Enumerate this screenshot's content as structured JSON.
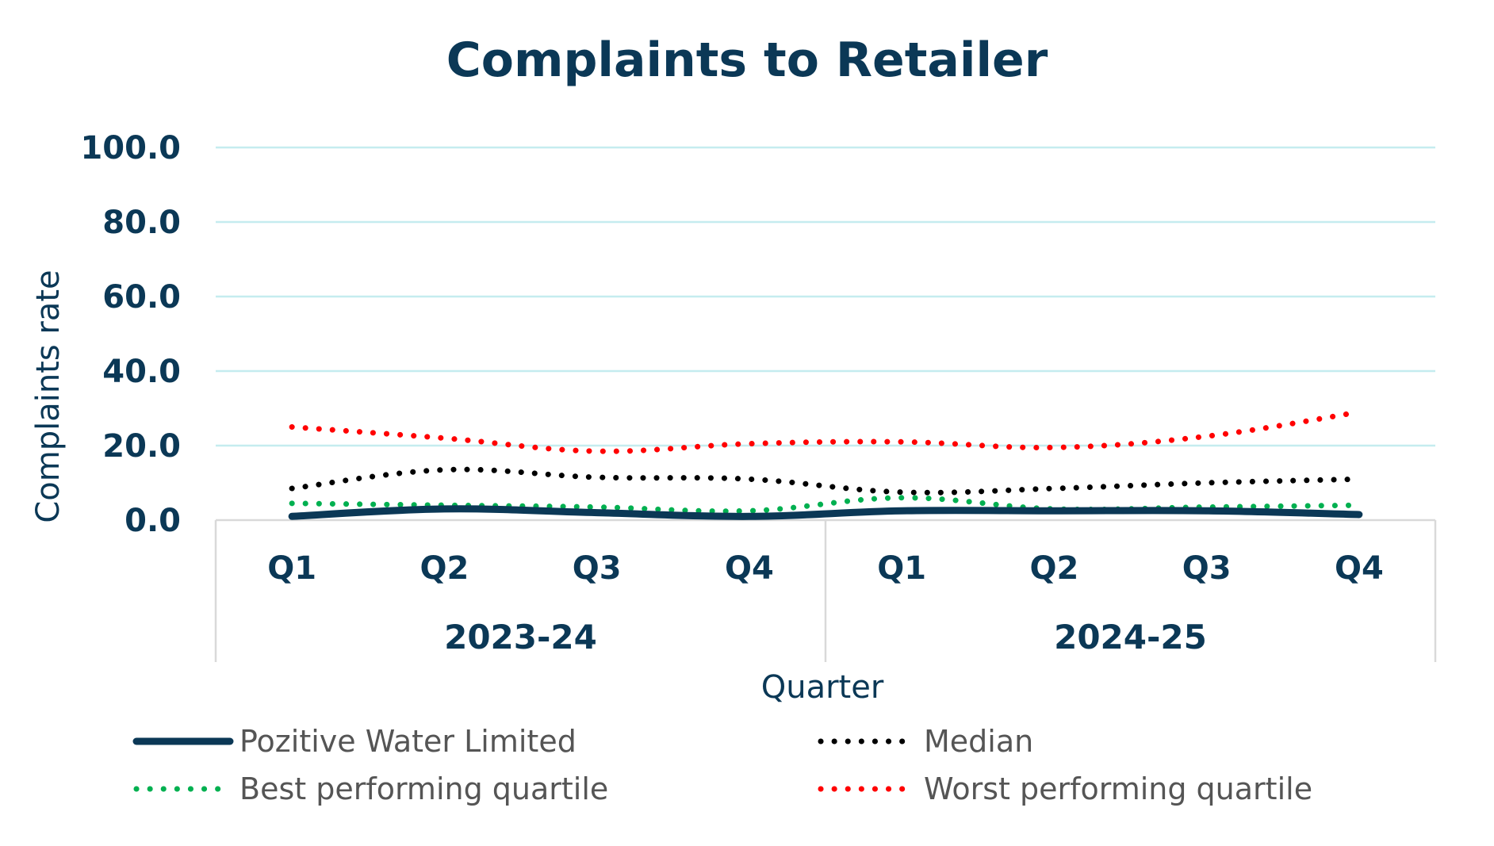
{
  "chart_data": {
    "type": "line",
    "title": "Complaints to Retailer",
    "xlabel": "Quarter",
    "ylabel": "Complaints rate",
    "ylim": [
      0,
      100
    ],
    "yticks": [
      "100.0",
      "80.0",
      "60.0",
      "40.0",
      "20.0",
      "0.0"
    ],
    "categories": [
      "Q1",
      "Q2",
      "Q3",
      "Q4",
      "Q1",
      "Q2",
      "Q3",
      "Q4"
    ],
    "groups": [
      {
        "label": "2023-24",
        "span": 4
      },
      {
        "label": "2024-25",
        "span": 4
      }
    ],
    "grid": true,
    "legend_position": "bottom",
    "series": [
      {
        "name": "Pozitive Water Limited",
        "style": "solid",
        "color": "#0b3856",
        "values": [
          1.0,
          3.0,
          2.0,
          1.0,
          2.5,
          2.5,
          2.5,
          1.5
        ]
      },
      {
        "name": "Median",
        "style": "dotted",
        "color": "#000000",
        "values": [
          8.5,
          13.5,
          11.5,
          11.0,
          7.5,
          8.5,
          10.0,
          11.0
        ]
      },
      {
        "name": "Best performing quartile",
        "style": "dotted",
        "color": "#00b050",
        "values": [
          4.5,
          4.0,
          3.5,
          2.5,
          6.0,
          3.0,
          3.5,
          4.0
        ]
      },
      {
        "name": "Worst performing quartile",
        "style": "dotted",
        "color": "#ff0000",
        "values": [
          25.0,
          22.0,
          18.5,
          20.5,
          21.0,
          19.5,
          22.5,
          29.0
        ]
      }
    ],
    "gridline_color": "#c5ecef",
    "axis_color": "#d9d9d9"
  }
}
